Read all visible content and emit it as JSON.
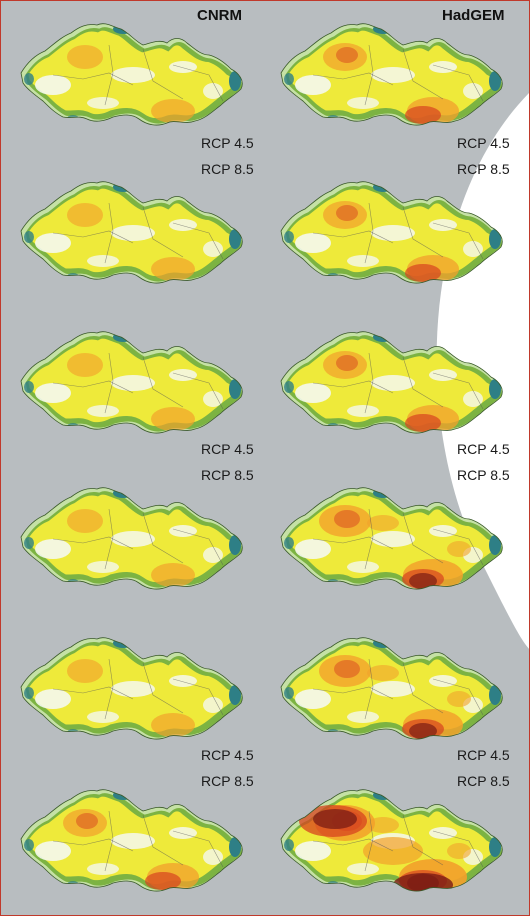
{
  "columns": {
    "left": "CNRM",
    "right": "HadGEM"
  },
  "labels": {
    "rcp45": "RCP 4.5",
    "rcp85": "RCP 8.5"
  },
  "colors": {
    "background": "#b8bdc0",
    "border": "#c0392b",
    "mountain_teal": "#2e7f86",
    "green": "#7cb342",
    "light_green": "#c5e1a5",
    "white_area": "#f4f8f0",
    "yellow": "#eeea3a",
    "orange": "#f2a12b",
    "red": "#d7431f",
    "dark_red": "#7a1c14"
  },
  "maps": [
    {
      "column": "CNRM",
      "row": 1,
      "intensity": 1
    },
    {
      "column": "HadGEM",
      "row": 1,
      "intensity": 2
    },
    {
      "column": "CNRM",
      "row": 2,
      "intensity": 1
    },
    {
      "column": "HadGEM",
      "row": 2,
      "intensity": 2
    },
    {
      "column": "CNRM",
      "row": 3,
      "intensity": 1
    },
    {
      "column": "HadGEM",
      "row": 3,
      "intensity": 2
    },
    {
      "column": "CNRM",
      "row": 4,
      "intensity": 1
    },
    {
      "column": "HadGEM",
      "row": 4,
      "intensity": 3
    },
    {
      "column": "CNRM",
      "row": 5,
      "intensity": 1
    },
    {
      "column": "HadGEM",
      "row": 5,
      "intensity": 3
    },
    {
      "column": "CNRM",
      "row": 6,
      "intensity": 2
    },
    {
      "column": "HadGEM",
      "row": 6,
      "intensity": 4
    }
  ]
}
